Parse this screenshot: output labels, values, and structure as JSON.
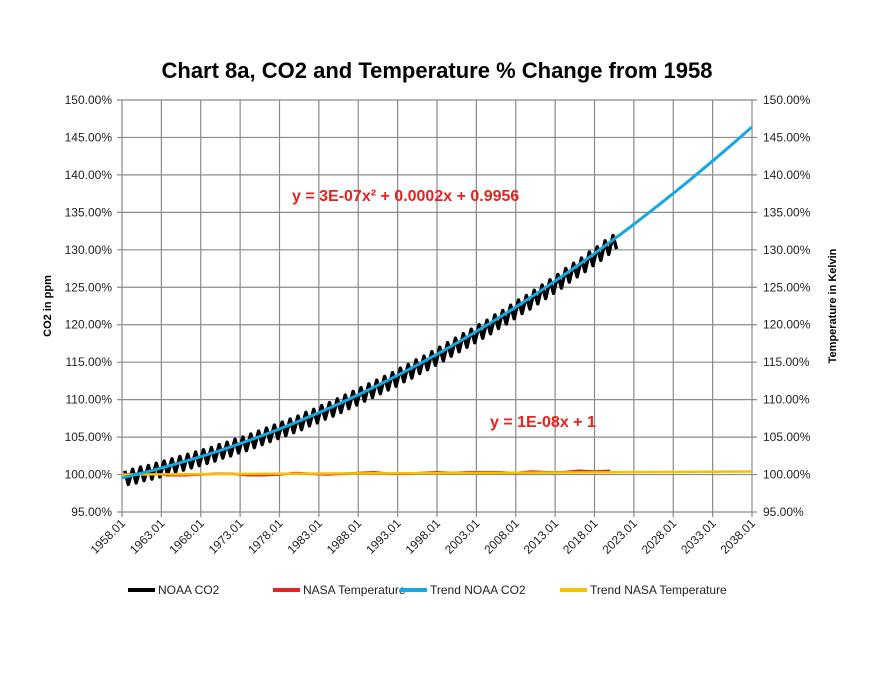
{
  "chart_data": {
    "type": "line",
    "title": "Chart 8a, CO2 and Temperature % Change from 1958",
    "ylabel_left": "CO2 in ppm",
    "ylabel_right": "Temperature in Kelvin",
    "xlim": [
      1958,
      2038
    ],
    "ylim": [
      95,
      150
    ],
    "grid": true,
    "legend_position": "bottom",
    "x_tick_labels": [
      "1958.01",
      "1963.01",
      "1968.01",
      "1973.01",
      "1978.01",
      "1983.01",
      "1988.01",
      "1993.01",
      "1998.01",
      "2003.01",
      "2008.01",
      "2013.01",
      "2018.01",
      "2023.01",
      "2028.01",
      "2033.01",
      "2038.01"
    ],
    "y_tick_labels": [
      "95.00%",
      "100.00%",
      "105.00%",
      "110.00%",
      "115.00%",
      "120.00%",
      "125.00%",
      "130.00%",
      "135.00%",
      "140.00%",
      "145.00%",
      "150.00%"
    ],
    "annotations": {
      "co2_trend_equation": "y = 3E-07x² + 0.0002x + 0.9956",
      "temp_trend_equation": "y = 1E-08x + 1"
    },
    "series": [
      {
        "name": "NOAA CO2",
        "color": "#000000",
        "years": [
          1958,
          1959,
          1960,
          1961,
          1962,
          1963,
          1964,
          1965,
          1966,
          1967,
          1968,
          1969,
          1970,
          1971,
          1972,
          1973,
          1974,
          1975,
          1976,
          1977,
          1978,
          1979,
          1980,
          1981,
          1982,
          1983,
          1984,
          1985,
          1986,
          1987,
          1988,
          1989,
          1990,
          1991,
          1992,
          1993,
          1994,
          1995,
          1996,
          1997,
          1998,
          1999,
          2000,
          2001,
          2002,
          2003,
          2004,
          2005,
          2006,
          2007,
          2008,
          2009,
          2010,
          2011,
          2012,
          2013,
          2014,
          2015,
          2016,
          2017,
          2018,
          2019,
          2020
        ],
        "seasonal_max": [
          100.5,
          100.7,
          101.0,
          101.2,
          101.5,
          101.8,
          102.1,
          102.4,
          102.7,
          103.0,
          103.3,
          103.6,
          104.0,
          104.3,
          104.7,
          105.0,
          105.4,
          105.8,
          106.2,
          106.6,
          107.0,
          107.4,
          107.8,
          108.3,
          108.7,
          109.2,
          109.6,
          110.1,
          110.6,
          111.1,
          111.6,
          112.1,
          112.6,
          113.1,
          113.6,
          114.2,
          114.7,
          115.3,
          115.8,
          116.4,
          117.0,
          117.6,
          118.2,
          118.8,
          119.4,
          120.0,
          120.6,
          121.3,
          121.9,
          122.6,
          123.3,
          123.9,
          124.6,
          125.3,
          126.0,
          126.7,
          127.5,
          128.2,
          128.9,
          129.7,
          130.4,
          131.2,
          131.9
        ],
        "seasonal_min": [
          98.7,
          98.9,
          99.2,
          99.4,
          99.7,
          100.0,
          100.3,
          100.6,
          100.9,
          101.2,
          101.5,
          101.8,
          102.2,
          102.5,
          102.9,
          103.2,
          103.6,
          104.0,
          104.4,
          104.8,
          105.2,
          105.6,
          106.0,
          106.5,
          106.9,
          107.4,
          107.8,
          108.3,
          108.8,
          109.3,
          109.8,
          110.3,
          110.8,
          111.3,
          111.8,
          112.4,
          112.9,
          113.5,
          114.0,
          114.6,
          115.2,
          115.8,
          116.4,
          117.0,
          117.6,
          118.2,
          118.8,
          119.5,
          120.1,
          120.8,
          121.5,
          122.1,
          122.8,
          123.5,
          124.2,
          124.9,
          125.7,
          126.4,
          127.1,
          127.9,
          128.6,
          129.4,
          130.1
        ]
      },
      {
        "name": "NASA Temperature",
        "color": "#e8231f",
        "x": [
          1958,
          1960,
          1962,
          1964,
          1966,
          1968,
          1970,
          1972,
          1974,
          1976,
          1978,
          1980,
          1982,
          1984,
          1986,
          1988,
          1990,
          1992,
          1994,
          1996,
          1998,
          2000,
          2002,
          2004,
          2006,
          2008,
          2010,
          2012,
          2014,
          2016,
          2018,
          2020
        ],
        "y": [
          100.0,
          100.1,
          100.1,
          99.9,
          99.9,
          100.0,
          100.1,
          100.1,
          99.9,
          99.9,
          100.0,
          100.2,
          100.1,
          100.0,
          100.1,
          100.2,
          100.3,
          100.1,
          100.1,
          100.2,
          100.3,
          100.2,
          100.3,
          100.3,
          100.3,
          100.2,
          100.4,
          100.3,
          100.3,
          100.5,
          100.4,
          100.5
        ]
      },
      {
        "name": "Trend NOAA CO2",
        "color": "#1aa7e0",
        "x": [
          1958,
          1960,
          1962,
          1964,
          1966,
          1968,
          1970,
          1972,
          1974,
          1976,
          1978,
          1980,
          1982,
          1984,
          1986,
          1988,
          1990,
          1992,
          1994,
          1996,
          1998,
          2000,
          2002,
          2004,
          2006,
          2008,
          2010,
          2012,
          2014,
          2016,
          2018,
          2020,
          2022,
          2024,
          2026,
          2028,
          2030,
          2032,
          2034,
          2036,
          2038
        ],
        "y": [
          99.56,
          100.06,
          100.59,
          101.16,
          101.76,
          102.39,
          103.06,
          103.77,
          104.51,
          105.28,
          106.09,
          106.93,
          107.81,
          108.72,
          109.67,
          110.65,
          111.66,
          112.71,
          113.8,
          114.92,
          116.07,
          117.26,
          118.48,
          119.74,
          121.03,
          122.36,
          123.72,
          125.12,
          126.55,
          128.01,
          129.51,
          131.05,
          132.61,
          134.22,
          135.86,
          137.53,
          139.23,
          140.98,
          142.75,
          144.56,
          146.41
        ]
      },
      {
        "name": "Trend NASA Temperature",
        "color": "#f5c000",
        "x": [
          1958,
          2038
        ],
        "y": [
          100.0,
          100.4
        ]
      }
    ]
  }
}
